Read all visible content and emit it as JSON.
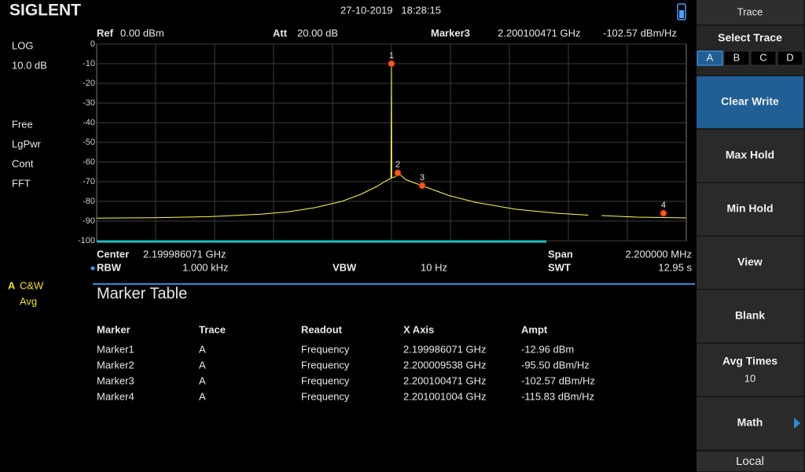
{
  "header": {
    "brand": "SIGLENT",
    "datetime": "27-10-2019   18:28:15"
  },
  "left_panel": {
    "scale_type": "LOG",
    "scale_div": "10.0 dB",
    "trigger": "Free",
    "detector": "LgPwr",
    "sweep_mode": "Cont",
    "sweep_type": "FFT",
    "trace_label": "A",
    "trace_mode": "C&W",
    "trace_avg": "Avg"
  },
  "top_bar": {
    "ref_label": "Ref",
    "ref_value": "0.00 dBm",
    "att_label": "Att",
    "att_value": "20.00 dB",
    "marker_label": "Marker3",
    "marker_freq": "2.200100471 GHz",
    "marker_ampt": "-102.57 dBm/Hz"
  },
  "chart_data": {
    "type": "line",
    "ylim": [
      -100,
      0
    ],
    "yticks": [
      0,
      -10,
      -20,
      -30,
      -40,
      -50,
      -60,
      -70,
      -80,
      -90,
      -100
    ],
    "xlim": [
      2198.886071,
      2201.086071
    ],
    "grid": true,
    "series": [
      {
        "color": "#ffff40",
        "x": [
          2198.886,
          2199.1,
          2199.3,
          2199.5,
          2199.6,
          2199.7,
          2199.8,
          2199.87,
          2199.93,
          2199.96,
          2199.98,
          2199.984,
          2199.985,
          2199.986,
          2199.987,
          2200.0,
          2200.01,
          2200.04,
          2200.1,
          2200.2,
          2200.3,
          2200.45,
          2200.6,
          2200.72,
          2200.74,
          2200.77,
          2200.9,
          2201.0,
          2201.086
        ],
        "values": [
          -88.5,
          -88.3,
          -87.8,
          -86.5,
          -85.3,
          -83.2,
          -80,
          -76.5,
          -72.5,
          -70,
          -68.5,
          -68.3,
          -37,
          -10,
          -68,
          -67.5,
          -65.5,
          -69,
          -72,
          -77,
          -80.5,
          -84,
          -86,
          -87,
          null,
          -87.2,
          -88,
          -88.2,
          -88.4
        ]
      }
    ],
    "markers": [
      {
        "label": "1",
        "x": 2199.986,
        "y": -10
      },
      {
        "label": "2",
        "x": 2200.0095,
        "y": -65.5
      },
      {
        "label": "3",
        "x": 2200.1005,
        "y": -72
      },
      {
        "label": "4",
        "x": 2201.001,
        "y": -86
      }
    ]
  },
  "bottom_bar": {
    "center_label": "Center",
    "center_value": "2.199986071 GHz",
    "span_label": "Span",
    "span_value": "2.200000 MHz",
    "rbw_label": "RBW",
    "rbw_value": "1.000 kHz",
    "vbw_label": "VBW",
    "vbw_value": "10 Hz",
    "swt_label": "SWT",
    "swt_value": "12.95 s"
  },
  "marker_table": {
    "title": "Marker Table",
    "headers": [
      "Marker",
      "Trace",
      "Readout",
      "X Axis",
      "Ampt"
    ],
    "rows": [
      [
        "Marker1",
        "A",
        "Frequency",
        "2.199986071 GHz",
        "-12.96 dBm"
      ],
      [
        "Marker2",
        "A",
        "Frequency",
        "2.200009538 GHz",
        "-95.50 dBm/Hz"
      ],
      [
        "Marker3",
        "A",
        "Frequency",
        "2.200100471 GHz",
        "-102.57 dBm/Hz"
      ],
      [
        "Marker4",
        "A",
        "Frequency",
        "2.201001004 GHz",
        "-115.83 dBm/Hz"
      ]
    ]
  },
  "menu": {
    "title": "Trace",
    "select_label": "Select Trace",
    "traces": [
      "A",
      "B",
      "C",
      "D"
    ],
    "buttons": [
      "Clear Write",
      "Max Hold",
      "Min Hold",
      "View",
      "Blank",
      "Avg Times",
      "Math"
    ],
    "avg_times_value": "10",
    "footer": "Local"
  }
}
